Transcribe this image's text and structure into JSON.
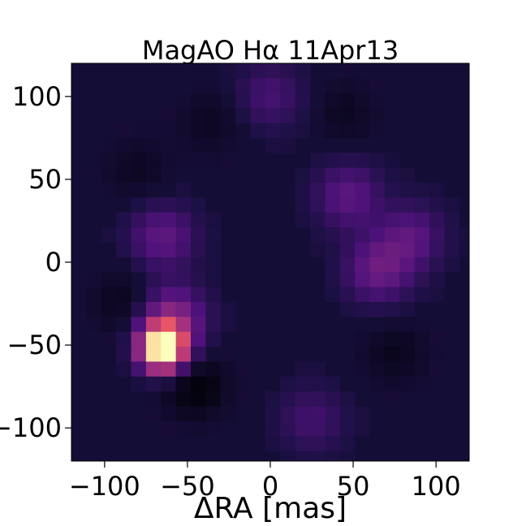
{
  "chart_data": {
    "type": "heatmap",
    "title": "MagAO Hα 11Apr13",
    "xlabel": "ΔRA [mas]",
    "ylabel": "",
    "xlim": [
      -120,
      120
    ],
    "ylim": [
      -120,
      120
    ],
    "xticks": [
      -100,
      -50,
      0,
      50,
      100
    ],
    "yticks": [
      -100,
      -50,
      0,
      50,
      100
    ],
    "xtick_labels": [
      "−100",
      "−50",
      "0",
      "50",
      "100"
    ],
    "ytick_labels": [
      "−100",
      "−50",
      "0",
      "50",
      "100"
    ],
    "colormap": "magma",
    "background_color": "#140e36",
    "grid": false,
    "cell_size_mas": 9,
    "features": [
      {
        "type": "bright_source",
        "x": -65,
        "y": -52,
        "intensity": 1.0
      },
      {
        "type": "emission",
        "x": -60,
        "y": -35,
        "intensity": 0.3
      },
      {
        "type": "emission",
        "x": -65,
        "y": 15,
        "intensity": 0.18
      },
      {
        "type": "emission",
        "x": 65,
        "y": -5,
        "intensity": 0.2
      },
      {
        "type": "emission",
        "x": 85,
        "y": 15,
        "intensity": 0.16
      },
      {
        "type": "emission",
        "x": 47,
        "y": 40,
        "intensity": 0.17
      },
      {
        "type": "emission",
        "x": 0,
        "y": 100,
        "intensity": 0.12
      },
      {
        "type": "emission",
        "x": 25,
        "y": -95,
        "intensity": 0.11
      },
      {
        "type": "deficit",
        "x": -85,
        "y": -25,
        "intensity": -0.08
      },
      {
        "type": "deficit",
        "x": -45,
        "y": -75,
        "intensity": -0.1
      },
      {
        "type": "deficit",
        "x": 75,
        "y": -55,
        "intensity": -0.06
      },
      {
        "type": "deficit",
        "x": -35,
        "y": 85,
        "intensity": -0.05
      },
      {
        "type": "deficit",
        "x": 45,
        "y": 90,
        "intensity": -0.05
      },
      {
        "type": "deficit",
        "x": -80,
        "y": 55,
        "intensity": -0.05
      }
    ]
  }
}
